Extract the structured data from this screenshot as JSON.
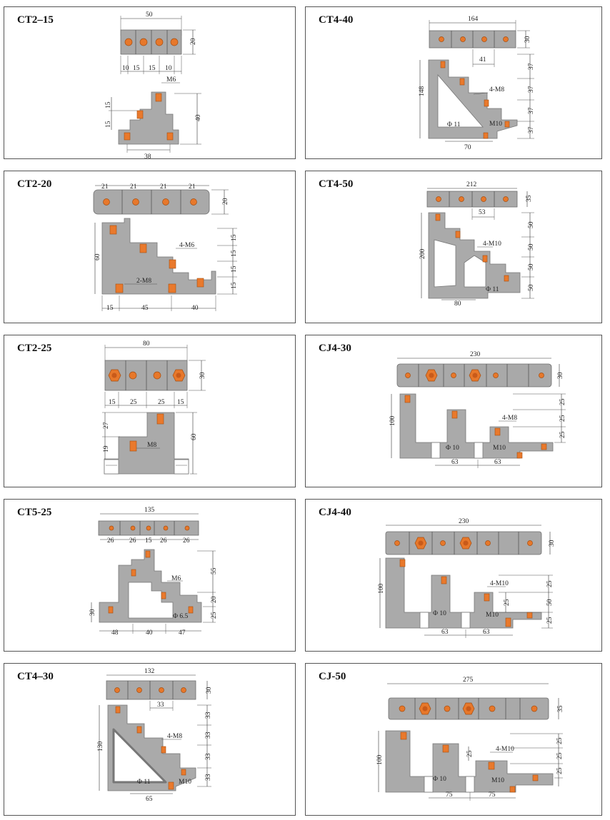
{
  "panels": [
    {
      "title": "CT2–15",
      "dims": {
        "top_width": "50",
        "bar_height": "20",
        "s1": "10",
        "s2": "15",
        "s3": "15",
        "s4": "10",
        "bolt": "M6",
        "side_top": "15",
        "side_bottom": "15",
        "height": "40",
        "base": "38"
      }
    },
    {
      "title": "CT4-40",
      "dims": {
        "top_width": "164",
        "bar_height": "30",
        "pitch": "41",
        "bolts": "4-M8",
        "height": "148",
        "step1": "37",
        "step2": "37",
        "step3": "37",
        "step4": "37",
        "hole": "Φ 11",
        "base_bolt": "M10",
        "base": "70"
      }
    },
    {
      "title": "CT2-20",
      "dims": {
        "s1": "21",
        "s2": "21",
        "s3": "21",
        "s4": "21",
        "bar_height": "20",
        "height": "60",
        "bolts": "4-M6",
        "base_bolts": "2-M8",
        "step1": "15",
        "step2": "15",
        "step3": "15",
        "step4": "15",
        "b1": "15",
        "b2": "45",
        "b3": "40"
      }
    },
    {
      "title": "CT4-50",
      "dims": {
        "top_width": "212",
        "bar_height": "35",
        "pitch": "53",
        "height": "200",
        "bolts": "4-M10",
        "step1": "50",
        "step2": "50",
        "step3": "50",
        "step4": "50",
        "hole": "Φ 11",
        "base": "80"
      }
    },
    {
      "title": "CT2-25",
      "dims": {
        "top_width": "80",
        "bar_height": "30",
        "s1": "15",
        "s2": "25",
        "s3": "25",
        "s4": "15",
        "side_top": "27",
        "side_bottom": "19",
        "bolt": "M8",
        "height": "60"
      }
    },
    {
      "title": "CJ4-30",
      "dims": {
        "top_width": "230",
        "bar_height": "30",
        "height": "100",
        "bolts": "4-M8",
        "hole": "Φ 10",
        "base_bolt": "M10",
        "b1": "63",
        "b2": "63",
        "step1": "25",
        "step2": "25",
        "step3": "25"
      }
    },
    {
      "title": "CT5-25",
      "dims": {
        "top_width": "135",
        "s1": "26",
        "s2": "26",
        "s3": "15",
        "s4": "26",
        "s5": "26",
        "bolt": "M6",
        "hole": "Φ 6.5",
        "left_h": "30",
        "step1": "55",
        "step2": "20",
        "step3": "25",
        "b1": "48",
        "b2": "40",
        "b3": "47"
      }
    },
    {
      "title": "CJ4-40",
      "dims": {
        "top_width": "230",
        "bar_height": "30",
        "height": "100",
        "bolts": "4-M10",
        "hole": "Φ 10",
        "base_bolt": "M10",
        "b1": "63",
        "b2": "63",
        "step1": "25",
        "step2": "50",
        "step3": "25",
        "inner": "25"
      }
    },
    {
      "title": "CT4–30",
      "dims": {
        "top_width": "132",
        "bar_height": "30",
        "pitch": "33",
        "height": "130",
        "bolts": "4-M8",
        "step1": "33",
        "step2": "33",
        "step3": "33",
        "step4": "33",
        "hole": "Φ 11",
        "base_bolt": "M10",
        "base": "65"
      }
    },
    {
      "title": "CJ-50",
      "dims": {
        "top_width": "275",
        "bar_height": "35",
        "height": "100",
        "bolts": "4-M10",
        "hole": "Φ 10",
        "base_bolt": "M10",
        "b1": "75",
        "b2": "75",
        "step1": "25",
        "step2": "25",
        "step3": "25",
        "inner": "25"
      }
    }
  ]
}
